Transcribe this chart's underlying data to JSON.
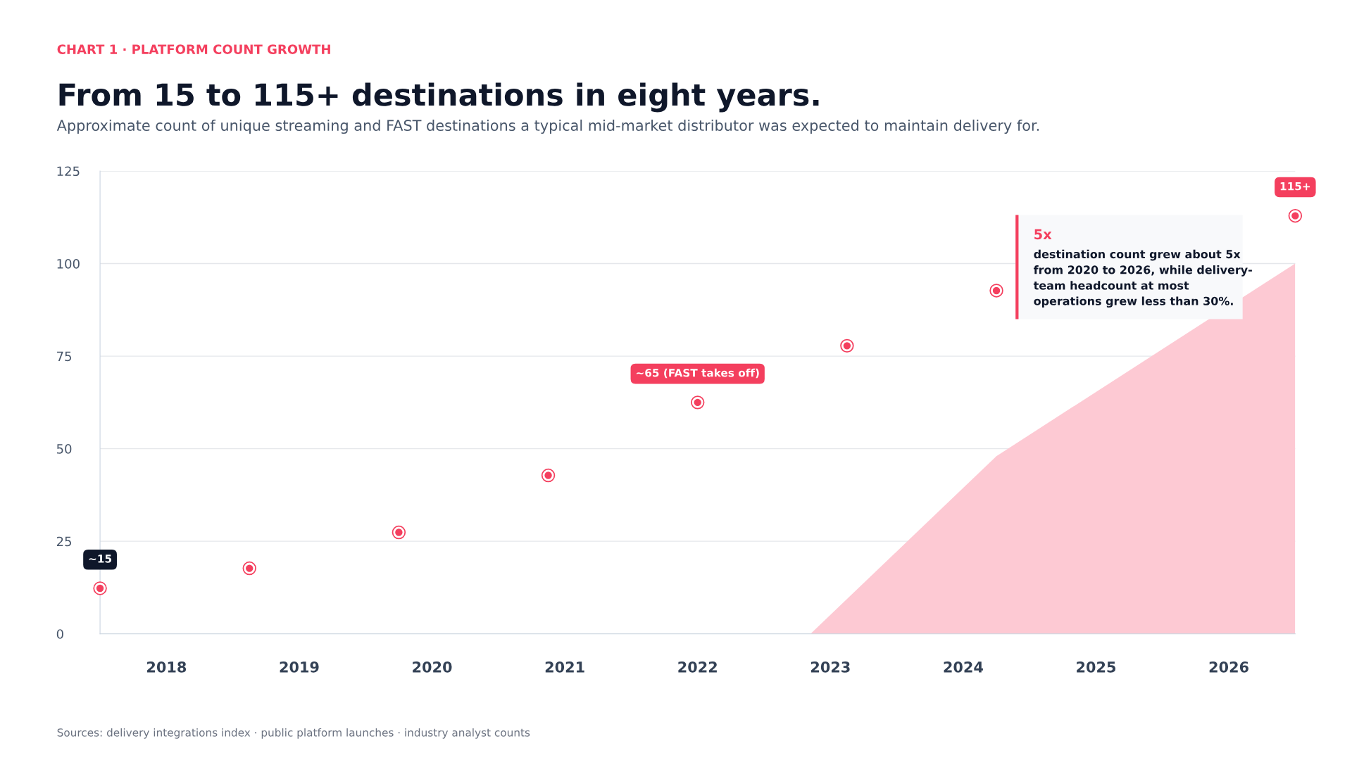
{
  "chart_data": {
    "type": "scatter",
    "title": "From 15 to 115+ destinations in eight years.",
    "subtitle": "Approximate count of unique streaming and FAST destinations a typical mid-market distributor was expected to maintain delivery for.",
    "xlim": [
      2017.5,
      2026.5
    ],
    "xticks": [
      2018,
      2019,
      2020,
      2021,
      2022,
      2023,
      2024,
      2025,
      2026
    ],
    "ylim": [
      0,
      125
    ],
    "yticks": [
      0,
      25,
      50,
      75,
      100,
      125
    ],
    "grid": "y",
    "series": [
      {
        "type": "area",
        "color": "#fdc9d3",
        "x": [
          2022.85,
          2024.25,
          2026.5
        ],
        "values": [
          0,
          48,
          100
        ]
      },
      {
        "marker": "circle",
        "color": "#f43f5e",
        "x": [
          2017.5,
          2018.625,
          2019.75,
          2020.875,
          2022,
          2023.125,
          2024.25,
          2025.375,
          2026.5
        ],
        "values": [
          12.3,
          17.7,
          27.4,
          42.8,
          62.5,
          77.8,
          92.7,
          null,
          112.9
        ]
      }
    ],
    "annotations": [
      "CHART 1 · PLATFORM COUNT GROWTH",
      {
        "text": "~15",
        "x": 2017.5,
        "y": 12.3
      },
      {
        "text": "~65 (FAST takes off)",
        "x": 2022,
        "y": 62.5
      },
      {
        "text": "115+",
        "x": 2026.5,
        "y": 112.9
      },
      "5x",
      "destination count grew about 5x\nfrom 2020 to 2026, while delivery-\nteam headcount at most\noperations grew less than 30%.",
      "Sources: delivery integrations index · public platform launches · industry analyst counts"
    ]
  }
}
